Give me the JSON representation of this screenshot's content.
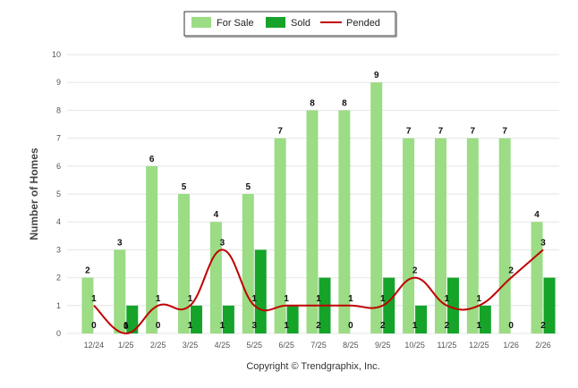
{
  "chart_data": {
    "type": "bar",
    "categories": [
      "12/24",
      "1/25",
      "2/25",
      "3/25",
      "4/25",
      "5/25",
      "6/25",
      "7/25",
      "8/25",
      "9/25",
      "10/25",
      "11/25",
      "12/25",
      "1/26",
      "2/26"
    ],
    "series": [
      {
        "name": "For Sale",
        "kind": "bar",
        "color": "#9bdc84",
        "values": [
          2,
          3,
          6,
          5,
          4,
          5,
          7,
          8,
          8,
          9,
          7,
          7,
          7,
          7,
          4
        ]
      },
      {
        "name": "Sold",
        "kind": "bar",
        "color": "#16a32a",
        "values": [
          0,
          1,
          0,
          1,
          1,
          3,
          1,
          2,
          0,
          2,
          1,
          2,
          1,
          0,
          2
        ]
      },
      {
        "name": "Pended",
        "kind": "line",
        "color": "#c00000",
        "values": [
          1,
          0,
          1,
          1,
          3,
          1,
          1,
          1,
          1,
          1,
          2,
          1,
          1,
          2,
          3
        ]
      }
    ],
    "title": "",
    "xlabel": "",
    "ylabel": "Number of Homes",
    "ylim": [
      0,
      10
    ],
    "yticks": [
      0,
      1,
      2,
      3,
      4,
      5,
      6,
      7,
      8,
      9,
      10
    ],
    "grid": true,
    "legend_position": "top-center"
  },
  "copyright": "Copyright © Trendgraphix, Inc."
}
